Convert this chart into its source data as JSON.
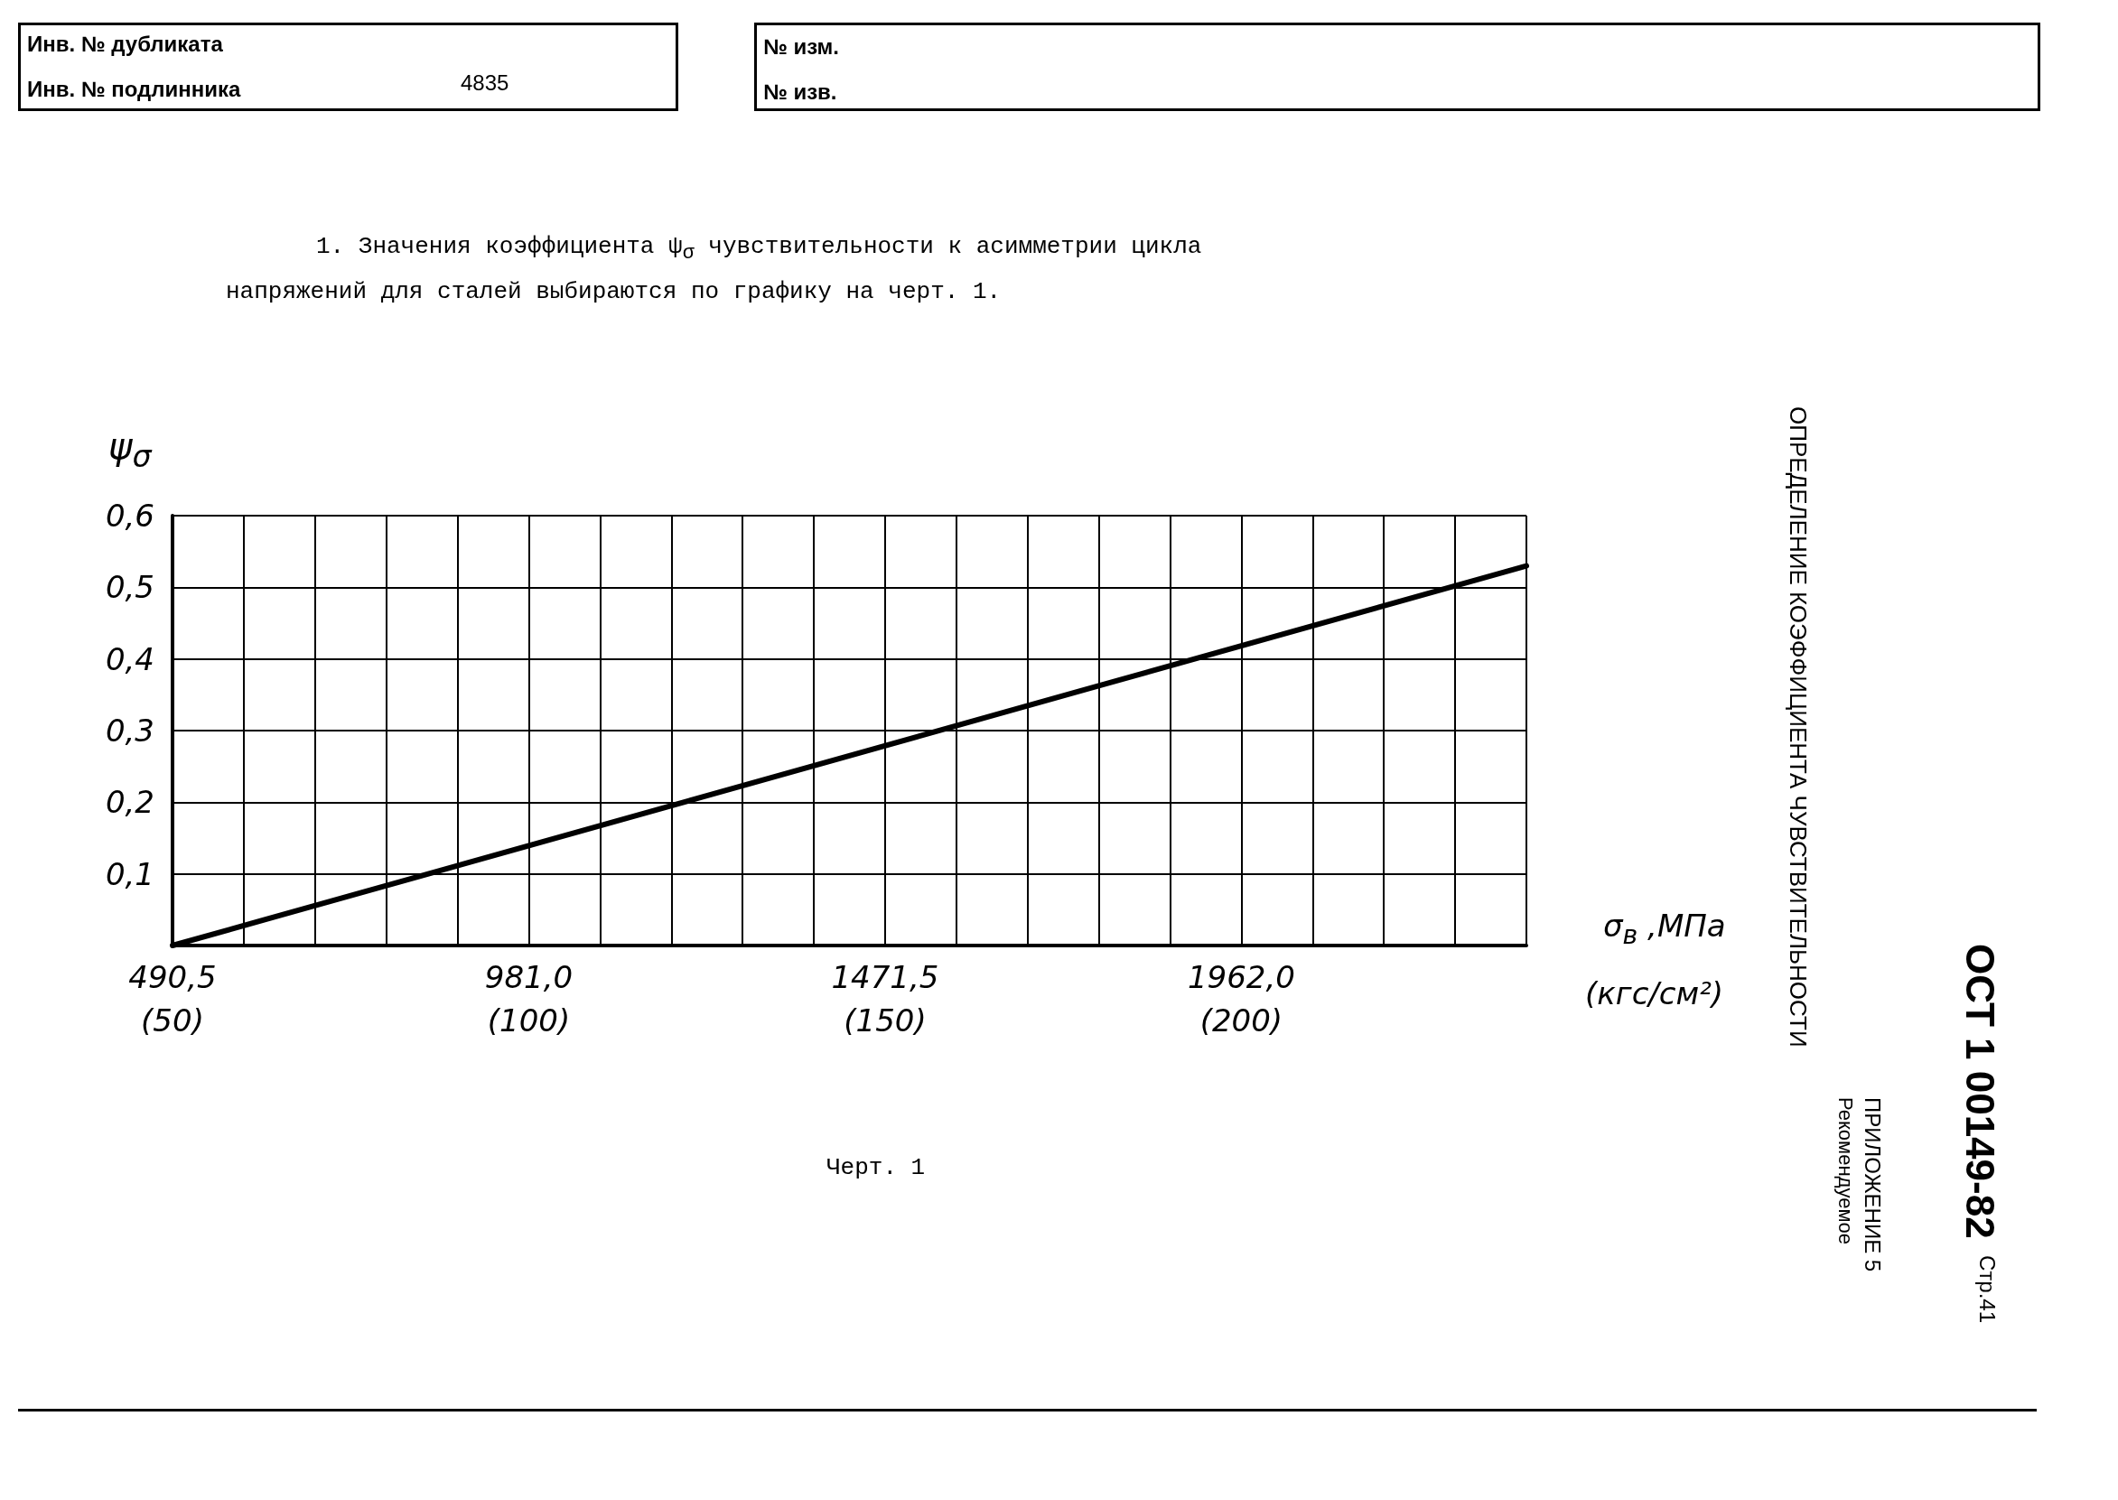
{
  "chart_data": {
    "type": "line",
    "title": "1. Значения коэффициента ψ$_{σ}$ чувствительности к асимметрии цикла напряжений для сталей выбираются по графику на черт. 1.",
    "xlabel": "σ$_{в}$ ,МПа",
    "ylabel": "ψ$_{σ}$",
    "annotations": [
      "Инв. № дубликата",
      "Инв. № подлинника",
      "4835",
      "№ изм.",
      "№ изв.",
      "Черт. 1",
      "ОПРЕДЕЛЕНИЕ КОЭФФИЦИЕНТА ЧУВСТВИТЕЛЬНОСТИ",
      "ПРИЛОЖЕНИЕ 5",
      "Рекомендуемое",
      "ОСТ 1 00149-82",
      "Стр.41"
    ],
    "x2label": "(кгс/см²)",
    "x2lim": [
      50,
      240
    ],
    "x2ticks": [
      {
        "value": 50,
        "label": "(50)"
      },
      {
        "value": 100,
        "label": "(100)"
      },
      {
        "value": 150,
        "label": "(150)"
      },
      {
        "value": 200,
        "label": "(200)"
      }
    ],
    "x": [
      490.5,
      2354.4
    ],
    "series": [
      {
        "color": "#000000",
        "values": [
          0,
          0.53
        ]
      }
    ],
    "xlim": [
      490.5,
      2354.4
    ],
    "xticks": [
      {
        "value": 490.5,
        "label": "490,5"
      },
      {
        "value": 588.6,
        "label": null
      },
      {
        "value": 686.7,
        "label": null
      },
      {
        "value": 784.8,
        "label": null
      },
      {
        "value": 882.9,
        "label": null
      },
      {
        "value": 981.0,
        "label": "981,0"
      },
      {
        "value": 1079.1,
        "label": null
      },
      {
        "value": 1177.2,
        "label": null
      },
      {
        "value": 1275.3,
        "label": null
      },
      {
        "value": 1373.4,
        "label": null
      },
      {
        "value": 1471.5,
        "label": "1471,5"
      },
      {
        "value": 1569.6,
        "label": null
      },
      {
        "value": 1667.7,
        "label": null
      },
      {
        "value": 1765.8,
        "label": null
      },
      {
        "value": 1863.9,
        "label": null
      },
      {
        "value": 1962.0,
        "label": "1962,0"
      },
      {
        "value": 2060.1,
        "label": null
      },
      {
        "value": 2158.2,
        "label": null
      },
      {
        "value": 2256.3,
        "label": null
      },
      {
        "value": 2354.4,
        "label": null
      }
    ],
    "ylim": [
      0,
      0.6
    ],
    "yticks": [
      {
        "value": 0,
        "label": null
      },
      {
        "value": 0.1,
        "label": "0,1"
      },
      {
        "value": 0.2,
        "label": "0,2"
      },
      {
        "value": 0.3,
        "label": "0,3"
      },
      {
        "value": 0.4,
        "label": "0,4"
      },
      {
        "value": 0.5,
        "label": "0,5"
      },
      {
        "value": 0.6,
        "label": "0,6"
      }
    ],
    "grid": true,
    "marker": "none",
    "line_style": "solid"
  }
}
